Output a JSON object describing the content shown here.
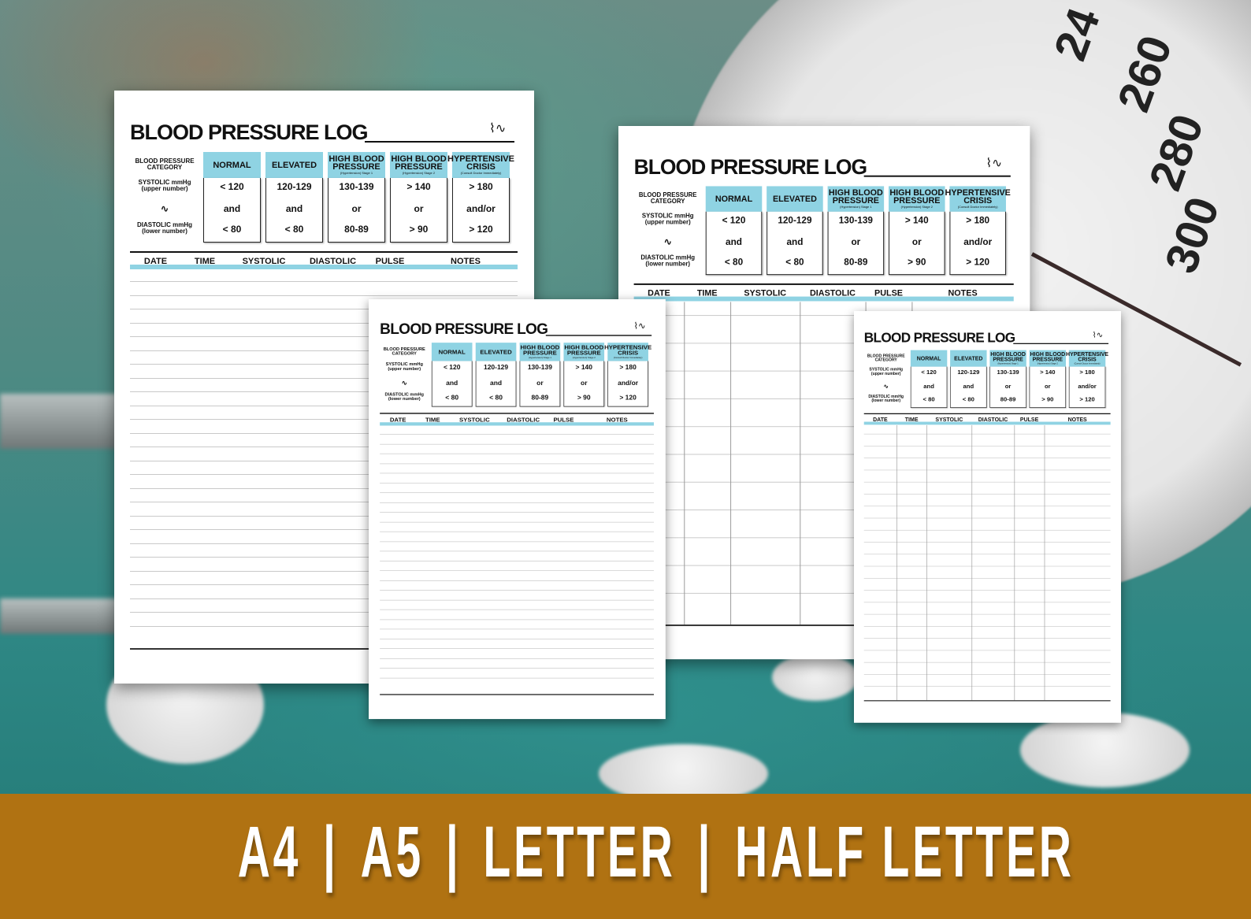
{
  "log_template": {
    "title": "BLOOD PRESSURE LOG",
    "row_labels": {
      "category": "BLOOD PRESSURE CATEGORY",
      "systolic": "SYSTOLIC mmHg (upper number)",
      "diastolic": "DIASTOLIC mmHg (lower number)"
    },
    "categories": [
      {
        "name": "NORMAL",
        "sub": "",
        "systolic": "< 120",
        "connector": "and",
        "diastolic": "< 80"
      },
      {
        "name": "ELEVATED",
        "sub": "",
        "systolic": "120-129",
        "connector": "and",
        "diastolic": "< 80"
      },
      {
        "name": "HIGH BLOOD PRESSURE",
        "sub": "(Hypertension) Stage 1",
        "systolic": "130-139",
        "connector": "or",
        "diastolic": "80-89"
      },
      {
        "name": "HIGH BLOOD PRESSURE",
        "sub": "(Hypertension) Stage 2",
        "systolic": "> 140",
        "connector": "or",
        "diastolic": "> 90"
      },
      {
        "name": "HYPERTENSIVE CRISIS",
        "sub": "(Consult Doctor Immediately)",
        "systolic": "> 180",
        "connector": "and/or",
        "diastolic": "> 120"
      }
    ],
    "columns": [
      "DATE",
      "TIME",
      "SYSTOLIC",
      "DIASTOLIC",
      "PULSE",
      "NOTES"
    ],
    "accent_color": "#8fd3e3"
  },
  "pages": [
    {
      "size": "A4",
      "layout": "lined"
    },
    {
      "size": "A5",
      "layout": "lined"
    },
    {
      "size": "LETTER",
      "layout": "columns"
    },
    {
      "size": "HALF LETTER",
      "layout": "columns"
    }
  ],
  "background": {
    "gauge_numbers": [
      "24",
      "260",
      "280",
      "300"
    ]
  },
  "banner": {
    "items": [
      "A4",
      "A5",
      "LETTER",
      "HALF LETTER"
    ],
    "separator": "|",
    "color": "#b07212"
  }
}
